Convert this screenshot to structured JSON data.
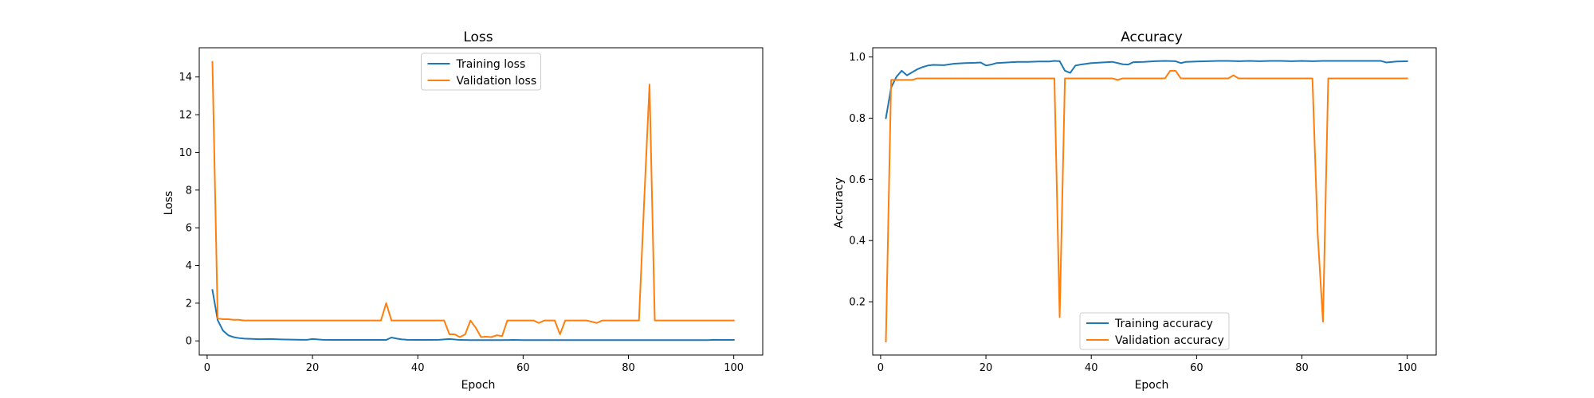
{
  "colors": {
    "training": "#1f77b4",
    "validation": "#ff7f0e"
  },
  "chart_data": [
    {
      "type": "line",
      "title": "Loss",
      "xlabel": "Epoch",
      "ylabel": "Loss",
      "xlim": [
        -1.5,
        105.5
      ],
      "ylim": [
        -0.75,
        15.55
      ],
      "xticks": [
        0,
        20,
        40,
        60,
        80,
        100
      ],
      "yticks": [
        0,
        2,
        4,
        6,
        8,
        10,
        12,
        14
      ],
      "legend": "upper-center",
      "grid": false,
      "series": [
        {
          "name": "Training loss",
          "color": "#1f77b4",
          "x": [
            1,
            2,
            3,
            4,
            5,
            6,
            7,
            8,
            9,
            10,
            12,
            14,
            16,
            18,
            19,
            20,
            21,
            22,
            24,
            26,
            28,
            30,
            32,
            33,
            34,
            35,
            36,
            37,
            38,
            40,
            42,
            44,
            46,
            48,
            50,
            52,
            54,
            56,
            58,
            60,
            62,
            64,
            66,
            68,
            70,
            72,
            74,
            76,
            78,
            80,
            82,
            84,
            86,
            88,
            90,
            92,
            94,
            95,
            96,
            98,
            100
          ],
          "y": [
            2.7,
            1.1,
            0.55,
            0.3,
            0.2,
            0.15,
            0.12,
            0.11,
            0.1,
            0.09,
            0.1,
            0.08,
            0.07,
            0.06,
            0.06,
            0.1,
            0.08,
            0.06,
            0.05,
            0.05,
            0.05,
            0.05,
            0.05,
            0.05,
            0.05,
            0.18,
            0.12,
            0.08,
            0.06,
            0.05,
            0.05,
            0.06,
            0.1,
            0.05,
            0.04,
            0.04,
            0.04,
            0.04,
            0.05,
            0.04,
            0.04,
            0.04,
            0.04,
            0.04,
            0.04,
            0.04,
            0.04,
            0.04,
            0.04,
            0.04,
            0.04,
            0.04,
            0.04,
            0.04,
            0.04,
            0.04,
            0.04,
            0.04,
            0.06,
            0.05,
            0.05
          ]
        },
        {
          "name": "Validation loss",
          "color": "#ff7f0e",
          "x": [
            1,
            2,
            3,
            4,
            5,
            6,
            7,
            8,
            9,
            10,
            12,
            14,
            16,
            18,
            20,
            22,
            24,
            26,
            28,
            30,
            32,
            33,
            34,
            35,
            36,
            38,
            40,
            42,
            44,
            45,
            46,
            47,
            48,
            49,
            50,
            51,
            52,
            53,
            54,
            55,
            56,
            57,
            58,
            59,
            60,
            61,
            62,
            63,
            64,
            65,
            66,
            67,
            68,
            69,
            70,
            71,
            72,
            73,
            74,
            75,
            76,
            77,
            78,
            79,
            80,
            81,
            82,
            83,
            84,
            85,
            86,
            88,
            90,
            92,
            94,
            96,
            98,
            100
          ],
          "y": [
            14.8,
            1.2,
            1.15,
            1.15,
            1.12,
            1.12,
            1.08,
            1.08,
            1.08,
            1.08,
            1.08,
            1.08,
            1.08,
            1.08,
            1.08,
            1.08,
            1.08,
            1.08,
            1.08,
            1.08,
            1.08,
            1.08,
            2.0,
            1.08,
            1.08,
            1.08,
            1.08,
            1.08,
            1.08,
            1.08,
            0.35,
            0.35,
            0.2,
            0.35,
            1.08,
            0.7,
            0.2,
            0.22,
            0.2,
            0.3,
            0.25,
            1.08,
            1.08,
            1.08,
            1.08,
            1.08,
            1.08,
            0.95,
            1.08,
            1.08,
            1.08,
            0.35,
            1.08,
            1.08,
            1.08,
            1.08,
            1.08,
            1.02,
            0.95,
            1.08,
            1.08,
            1.08,
            1.08,
            1.08,
            1.08,
            1.08,
            1.08,
            7.5,
            13.6,
            1.08,
            1.08,
            1.08,
            1.08,
            1.08,
            1.08,
            1.08,
            1.08,
            1.08
          ]
        }
      ]
    },
    {
      "type": "line",
      "title": "Accuracy",
      "xlabel": "Epoch",
      "ylabel": "Accuracy",
      "xlim": [
        -1.5,
        105.5
      ],
      "ylim": [
        0.026,
        1.03
      ],
      "xticks": [
        0,
        20,
        40,
        60,
        80,
        100
      ],
      "yticks": [
        0.2,
        0.4,
        0.6,
        0.8,
        1.0
      ],
      "legend": "lower-center",
      "grid": false,
      "series": [
        {
          "name": "Training accuracy",
          "color": "#1f77b4",
          "x": [
            1,
            2,
            3,
            4,
            5,
            6,
            7,
            8,
            9,
            10,
            12,
            14,
            16,
            18,
            19,
            20,
            21,
            22,
            24,
            26,
            28,
            30,
            32,
            33,
            34,
            35,
            36,
            37,
            38,
            40,
            42,
            44,
            46,
            47,
            48,
            50,
            52,
            54,
            56,
            57,
            58,
            60,
            62,
            64,
            66,
            68,
            70,
            72,
            74,
            76,
            78,
            80,
            82,
            84,
            86,
            88,
            90,
            92,
            94,
            95,
            96,
            98,
            100
          ],
          "y": [
            0.8,
            0.9,
            0.935,
            0.955,
            0.94,
            0.95,
            0.96,
            0.967,
            0.972,
            0.974,
            0.973,
            0.978,
            0.98,
            0.981,
            0.982,
            0.972,
            0.975,
            0.98,
            0.982,
            0.984,
            0.984,
            0.985,
            0.985,
            0.987,
            0.986,
            0.955,
            0.948,
            0.972,
            0.975,
            0.98,
            0.982,
            0.984,
            0.976,
            0.975,
            0.983,
            0.984,
            0.986,
            0.987,
            0.986,
            0.98,
            0.984,
            0.985,
            0.986,
            0.987,
            0.987,
            0.986,
            0.987,
            0.986,
            0.987,
            0.987,
            0.986,
            0.987,
            0.986,
            0.987,
            0.987,
            0.987,
            0.987,
            0.987,
            0.987,
            0.987,
            0.982,
            0.985,
            0.986
          ]
        },
        {
          "name": "Validation accuracy",
          "color": "#ff7f0e",
          "x": [
            1,
            2,
            3,
            4,
            5,
            6,
            7,
            8,
            9,
            10,
            12,
            14,
            16,
            18,
            20,
            22,
            24,
            26,
            28,
            30,
            32,
            33,
            34,
            35,
            36,
            38,
            40,
            42,
            44,
            45,
            46,
            48,
            50,
            52,
            54,
            55,
            56,
            57,
            58,
            60,
            62,
            64,
            66,
            67,
            68,
            70,
            72,
            74,
            76,
            78,
            80,
            82,
            83,
            84,
            85,
            86,
            88,
            90,
            92,
            94,
            96,
            98,
            100
          ],
          "y": [
            0.07,
            0.925,
            0.925,
            0.925,
            0.925,
            0.925,
            0.93,
            0.93,
            0.93,
            0.93,
            0.93,
            0.93,
            0.93,
            0.93,
            0.93,
            0.93,
            0.93,
            0.93,
            0.93,
            0.93,
            0.93,
            0.93,
            0.15,
            0.93,
            0.93,
            0.93,
            0.93,
            0.93,
            0.93,
            0.925,
            0.93,
            0.93,
            0.93,
            0.93,
            0.93,
            0.955,
            0.955,
            0.93,
            0.93,
            0.93,
            0.93,
            0.93,
            0.93,
            0.94,
            0.93,
            0.93,
            0.93,
            0.93,
            0.93,
            0.93,
            0.93,
            0.93,
            0.42,
            0.135,
            0.93,
            0.93,
            0.93,
            0.93,
            0.93,
            0.93,
            0.93,
            0.93,
            0.93
          ]
        }
      ]
    }
  ]
}
